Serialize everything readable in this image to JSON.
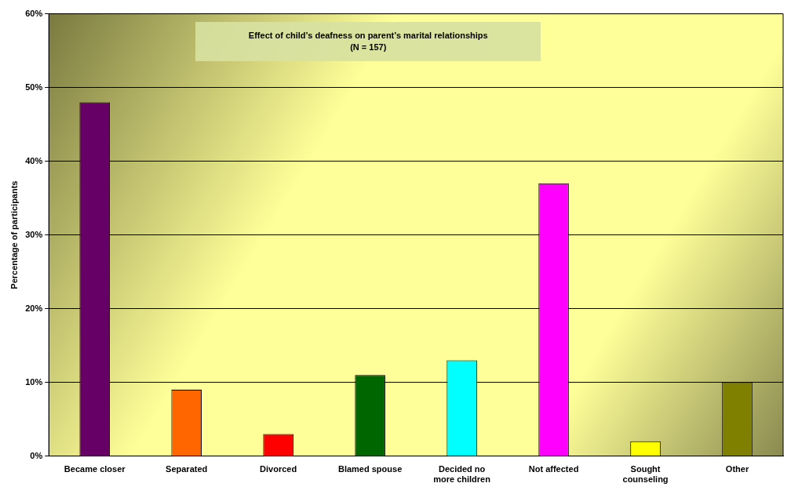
{
  "chart_data": {
    "type": "bar",
    "title": "Effect of child’s deafness on parent’s marital relationships",
    "subtitle": "(N = 157)",
    "ylabel": "Percentage of participants",
    "categories": [
      "Became closer",
      "Separated",
      "Divorced",
      "Blamed spouse",
      "Decided no more children",
      "Not affected",
      "Sought counseling",
      "Other"
    ],
    "values": [
      48,
      9,
      3,
      11,
      13,
      37,
      2,
      10
    ],
    "colors": [
      "#660066",
      "#ff6600",
      "#ff0000",
      "#006600",
      "#00ffff",
      "#ff00ff",
      "#ffff00",
      "#808000"
    ],
    "ylim": [
      0,
      60
    ],
    "yticks": [
      {
        "value": 0,
        "label": "0%"
      },
      {
        "value": 10,
        "label": "10%"
      },
      {
        "value": 20,
        "label": "20%"
      },
      {
        "value": 30,
        "label": "30%"
      },
      {
        "value": 40,
        "label": "40%"
      },
      {
        "value": 50,
        "label": "50%"
      },
      {
        "value": 60,
        "label": "60%"
      }
    ],
    "grid": "y",
    "legend": false
  }
}
